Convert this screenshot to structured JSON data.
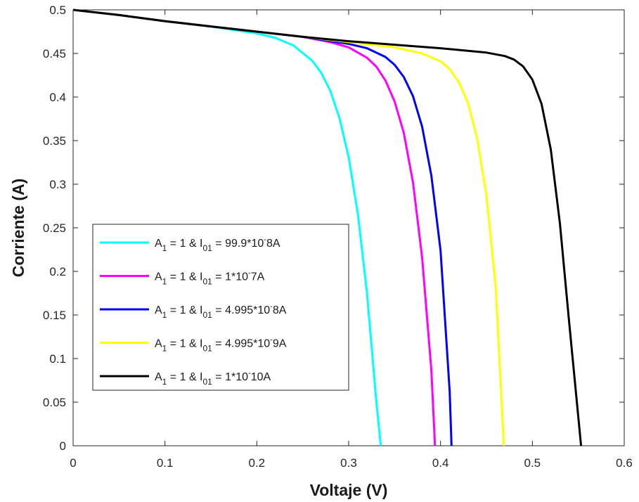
{
  "chart_data": {
    "type": "line",
    "xlabel": "Voltaje (V)",
    "ylabel": "Corriente (A)",
    "xlim": [
      0,
      0.6
    ],
    "ylim": [
      0,
      0.5
    ],
    "x_ticks": [
      "0",
      "0.1",
      "0.2",
      "0.3",
      "0.4",
      "0.5",
      "0.6"
    ],
    "y_ticks": [
      "0",
      "0.05",
      "0.1",
      "0.15",
      "0.2",
      "0.25",
      "0.3",
      "0.35",
      "0.4",
      "0.45",
      "0.5"
    ],
    "grid": false,
    "legend_position": "bottom-left",
    "series": [
      {
        "name": "A1 = 1 & I01 = 99.9*10^-8A",
        "legend": {
          "a": "A",
          "a_sub": "1",
          "mid": " = 1 & I",
          "i_sub": "01",
          "coef": " = 99.9*10",
          "exp": "-",
          "tail": "8A"
        },
        "color": "#00ffff",
        "x": [
          0,
          0.05,
          0.1,
          0.15,
          0.2,
          0.22,
          0.24,
          0.26,
          0.27,
          0.28,
          0.29,
          0.3,
          0.31,
          0.32,
          0.33,
          0.335
        ],
        "y": [
          0.5,
          0.494,
          0.487,
          0.481,
          0.473,
          0.468,
          0.459,
          0.442,
          0.428,
          0.407,
          0.376,
          0.331,
          0.266,
          0.175,
          0.052,
          0.0
        ]
      },
      {
        "name": "A1 = 1 & I01 = 1*10^-7A",
        "legend": {
          "a": "A",
          "a_sub": "1",
          "mid": " = 1 & I",
          "i_sub": "01",
          "coef": " = 1*10",
          "exp": "-",
          "tail": "7A"
        },
        "color": "#ff00ff",
        "x": [
          0,
          0.05,
          0.1,
          0.15,
          0.2,
          0.25,
          0.28,
          0.3,
          0.32,
          0.33,
          0.34,
          0.35,
          0.36,
          0.37,
          0.38,
          0.39,
          0.394
        ],
        "y": [
          0.5,
          0.494,
          0.487,
          0.481,
          0.475,
          0.469,
          0.463,
          0.457,
          0.445,
          0.435,
          0.419,
          0.395,
          0.359,
          0.302,
          0.216,
          0.087,
          0.0
        ]
      },
      {
        "name": "A1 = 1 & I01 = 4.995*10^-8A",
        "legend": {
          "a": "A",
          "a_sub": "1",
          "mid": " = 1 & I",
          "i_sub": "01",
          "coef": " = 4.995*10",
          "exp": "-",
          "tail": "8A"
        },
        "color": "#0000ff",
        "x": [
          0,
          0.05,
          0.1,
          0.15,
          0.2,
          0.25,
          0.3,
          0.32,
          0.34,
          0.35,
          0.36,
          0.37,
          0.38,
          0.39,
          0.4,
          0.41,
          0.412
        ],
        "y": [
          0.5,
          0.494,
          0.487,
          0.481,
          0.475,
          0.469,
          0.461,
          0.456,
          0.446,
          0.437,
          0.423,
          0.401,
          0.366,
          0.31,
          0.224,
          0.062,
          0.0
        ]
      },
      {
        "name": "A1 = 1 & I01 = 4.995*10^-9A",
        "legend": {
          "a": "A",
          "a_sub": "1",
          "mid": " = 1 & I",
          "i_sub": "01",
          "coef": " = 4.995*10",
          "exp": "-",
          "tail": "9A"
        },
        "color": "#ffff00",
        "x": [
          0,
          0.05,
          0.1,
          0.15,
          0.2,
          0.25,
          0.3,
          0.35,
          0.38,
          0.4,
          0.41,
          0.42,
          0.43,
          0.44,
          0.45,
          0.46,
          0.469
        ],
        "y": [
          0.5,
          0.494,
          0.487,
          0.481,
          0.475,
          0.469,
          0.463,
          0.457,
          0.45,
          0.441,
          0.432,
          0.417,
          0.393,
          0.352,
          0.287,
          0.183,
          0.0
        ]
      },
      {
        "name": "A1 = 1 & I01 = 1*10^-10A",
        "legend": {
          "a": "A",
          "a_sub": "1",
          "mid": " = 1 & I",
          "i_sub": "01",
          "coef": " = 1*10",
          "exp": "-",
          "tail": "10A"
        },
        "color": "#000000",
        "x": [
          0,
          0.05,
          0.1,
          0.15,
          0.2,
          0.25,
          0.3,
          0.35,
          0.4,
          0.45,
          0.47,
          0.48,
          0.49,
          0.5,
          0.51,
          0.52,
          0.53,
          0.54,
          0.553
        ],
        "y": [
          0.5,
          0.494,
          0.487,
          0.481,
          0.475,
          0.469,
          0.464,
          0.46,
          0.456,
          0.451,
          0.447,
          0.443,
          0.435,
          0.42,
          0.392,
          0.34,
          0.255,
          0.142,
          0.0
        ]
      }
    ]
  }
}
